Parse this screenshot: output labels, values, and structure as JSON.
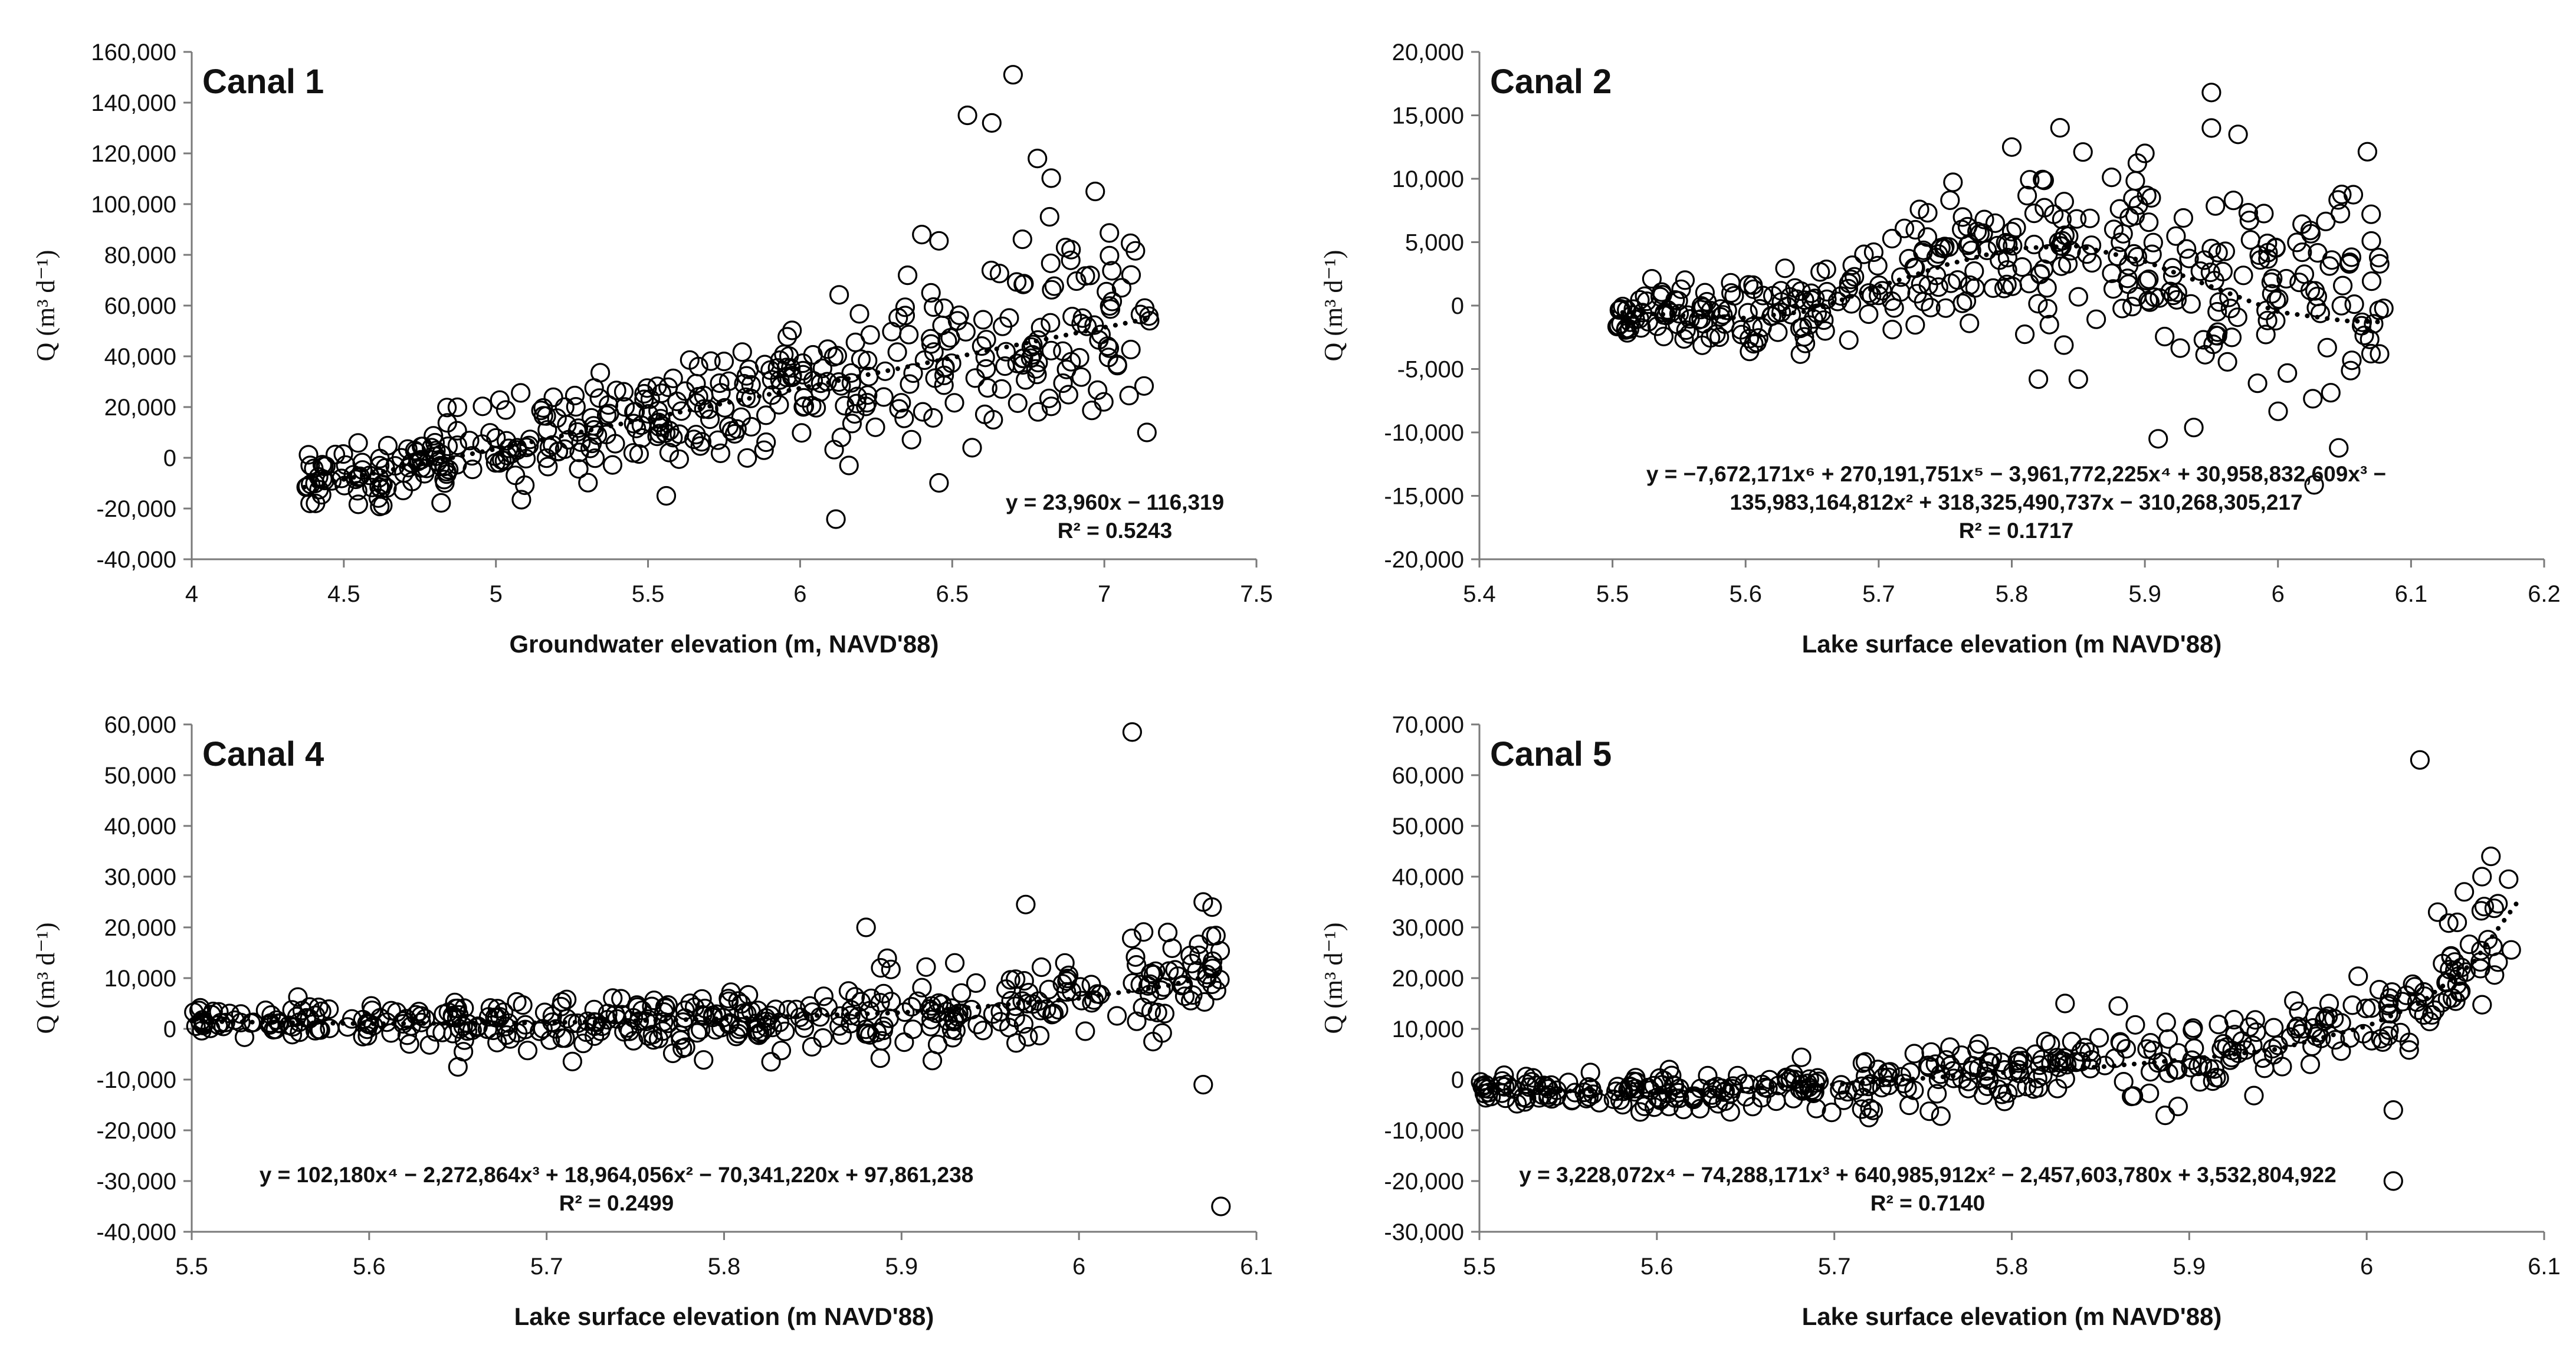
{
  "chart_data": [
    {
      "type": "scatter",
      "title": "Canal 1",
      "xlabel": "Groundwater elevation (m, NAVD'88)",
      "ylabel": "Q (m³ d⁻¹)",
      "xlim": [
        4,
        7.5
      ],
      "ylim": [
        -40000,
        160000
      ],
      "xticks": [
        4,
        4.5,
        5,
        5.5,
        6,
        6.5,
        7,
        7.5
      ],
      "xtick_labels": [
        "4",
        "4.5",
        "5",
        "5.5",
        "6",
        "6.5",
        "7",
        "7.5"
      ],
      "yticks": [
        -40000,
        -20000,
        0,
        20000,
        40000,
        60000,
        80000,
        100000,
        120000,
        140000,
        160000
      ],
      "ytick_labels": [
        "-40,000",
        "-20,000",
        "0",
        "20,000",
        "40,000",
        "60,000",
        "80,000",
        "100,000",
        "120,000",
        "140,000",
        "160,000"
      ],
      "trendline": {
        "kind": "poly",
        "coef": [
          -116319,
          23960
        ],
        "xrange": [
          4.37,
          7.15
        ]
      },
      "equation_lines": [
        "y = 23,960x − 116,319",
        "R² = 0.5243"
      ],
      "equation_pos": "bottom-right",
      "points": {
        "kind": "generated",
        "seed": 11,
        "n": 420,
        "xrange": [
          4.37,
          7.15
        ],
        "noise": [
          5000,
          20000
        ],
        "extra": [
          [
            6.55,
            135000
          ],
          [
            6.63,
            132000
          ],
          [
            6.7,
            151000
          ],
          [
            6.78,
            118000
          ],
          [
            6.82,
            95000
          ],
          [
            6.97,
            105000
          ],
          [
            6.4,
            88000
          ],
          [
            7.14,
            10000
          ],
          [
            5.56,
            -15000
          ],
          [
            5.75,
            38000
          ]
        ]
      }
    },
    {
      "type": "scatter",
      "title": "Canal 2",
      "xlabel": "Lake surface elevation (m NAVD'88)",
      "ylabel": "Q (m³ d⁻¹)",
      "xlim": [
        5.4,
        6.2
      ],
      "ylim": [
        -20000,
        20000
      ],
      "xticks": [
        5.4,
        5.5,
        5.6,
        5.7,
        5.8,
        5.9,
        6.0,
        6.1,
        6.2
      ],
      "xtick_labels": [
        "5.4",
        "5.5",
        "5.6",
        "5.7",
        "5.8",
        "5.9",
        "6",
        "6.1",
        "6.2"
      ],
      "yticks": [
        -20000,
        -15000,
        -10000,
        -5000,
        0,
        5000,
        10000,
        15000,
        20000
      ],
      "ytick_labels": [
        "-20,000",
        "-15,000",
        "-10,000",
        "-5,000",
        "0",
        "5,000",
        "10,000",
        "15,000",
        "20,000"
      ],
      "trendline": {
        "kind": "anchors",
        "x": [
          5.5,
          5.6,
          5.65,
          5.7,
          5.75,
          5.8,
          5.85,
          5.9,
          5.95,
          6.0,
          6.05,
          6.08
        ],
        "y": [
          -500,
          -1000,
          -400,
          1500,
          3200,
          4500,
          4700,
          3500,
          1500,
          -500,
          -1200,
          -1300
        ]
      },
      "equation_lines": [
        "y = −7,672,171x⁶ + 270,191,751x⁵ − 3,961,772,225x⁴ + 30,958,832,609x³ −",
        "135,983,164,812x² + 318,325,490,737x − 310,268,305,217",
        "R² = 0.1717"
      ],
      "equation_pos": "bottom-right",
      "points": {
        "kind": "generated",
        "seed": 23,
        "n": 380,
        "xrange": [
          5.5,
          6.08
        ],
        "noise": [
          800,
          5000
        ],
        "extra": [
          [
            5.8,
            12500
          ],
          [
            5.95,
            16800
          ],
          [
            5.95,
            14000
          ],
          [
            5.9,
            12000
          ],
          [
            5.91,
            -10500
          ],
          [
            5.85,
            -5800
          ],
          [
            5.82,
            -5800
          ],
          [
            5.97,
            13500
          ],
          [
            5.95,
            4500
          ],
          [
            6.07,
            7200
          ]
        ]
      }
    },
    {
      "type": "scatter",
      "title": "Canal 4",
      "xlabel": "Lake surface elevation (m NAVD'88)",
      "ylabel": "Q (m³ d⁻¹)",
      "xlim": [
        5.5,
        6.1
      ],
      "ylim": [
        -40000,
        60000
      ],
      "xticks": [
        5.5,
        5.6,
        5.7,
        5.8,
        5.9,
        6.0,
        6.1
      ],
      "xtick_labels": [
        "5.5",
        "5.6",
        "5.7",
        "5.8",
        "5.9",
        "6",
        "6.1"
      ],
      "yticks": [
        -40000,
        -30000,
        -20000,
        -10000,
        0,
        10000,
        20000,
        30000,
        40000,
        50000,
        60000
      ],
      "ytick_labels": [
        "-40,000",
        "-30,000",
        "-20,000",
        "-10,000",
        "0",
        "10,000",
        "20,000",
        "30,000",
        "40,000",
        "50,000",
        "60,000"
      ],
      "trendline": {
        "kind": "anchors",
        "x": [
          5.5,
          5.6,
          5.7,
          5.8,
          5.9,
          5.95,
          6.0,
          6.05,
          6.08
        ],
        "y": [
          1500,
          1000,
          1200,
          2000,
          3200,
          4500,
          6000,
          8500,
          11000
        ]
      },
      "equation_lines": [
        "y = 102,180x⁴ − 2,272,864x³ + 18,964,056x² − 70,341,220x + 97,861,238",
        "R² = 0.2499"
      ],
      "equation_pos": "bottom-left",
      "points": {
        "kind": "generated",
        "seed": 37,
        "n": 400,
        "xrange": [
          5.5,
          6.08
        ],
        "noise": [
          1500,
          4500
        ],
        "extra": [
          [
            6.03,
            58500
          ],
          [
            5.97,
            24500
          ],
          [
            5.88,
            20000
          ],
          [
            6.07,
            25000
          ],
          [
            6.08,
            -35000
          ],
          [
            6.07,
            -11000
          ],
          [
            5.65,
            -7500
          ],
          [
            6.05,
            19000
          ],
          [
            5.93,
            13000
          ],
          [
            6.075,
            24000
          ]
        ]
      }
    },
    {
      "type": "scatter",
      "title": "Canal 5",
      "xlabel": "Lake surface elevation (m NAVD'88)",
      "ylabel": "Q (m³ d⁻¹)",
      "xlim": [
        5.5,
        6.1
      ],
      "ylim": [
        -30000,
        70000
      ],
      "xticks": [
        5.5,
        5.6,
        5.7,
        5.8,
        5.9,
        6.0,
        6.1
      ],
      "xtick_labels": [
        "5.5",
        "5.6",
        "5.7",
        "5.8",
        "5.9",
        "6",
        "6.1"
      ],
      "yticks": [
        -30000,
        -20000,
        -10000,
        0,
        10000,
        20000,
        30000,
        40000,
        50000,
        60000,
        70000
      ],
      "ytick_labels": [
        "-30,000",
        "-20,000",
        "-10,000",
        "0",
        "10,000",
        "20,000",
        "30,000",
        "40,000",
        "50,000",
        "60,000",
        "70,000"
      ],
      "trendline": {
        "kind": "anchors",
        "x": [
          5.5,
          5.6,
          5.7,
          5.8,
          5.85,
          5.9,
          5.95,
          6.0,
          6.03,
          6.06,
          6.085
        ],
        "y": [
          -2000,
          -2500,
          -1000,
          1500,
          2500,
          4000,
          6000,
          10500,
          15000,
          23000,
          35000
        ]
      },
      "equation_lines": [
        "y = 3,228,072x⁴ − 74,288,171x³ + 640,985,912x² − 2,457,603,780x + 3,532,804,922",
        "R² = 0.7140"
      ],
      "equation_pos": "bottom-left",
      "points": {
        "kind": "generated",
        "seed": 53,
        "n": 400,
        "xrange": [
          5.5,
          6.085
        ],
        "noise": [
          1200,
          5000
        ],
        "extra": [
          [
            6.03,
            63000
          ],
          [
            6.07,
            44000
          ],
          [
            6.065,
            40000
          ],
          [
            6.015,
            -20000
          ],
          [
            6.015,
            -6000
          ],
          [
            5.83,
            15000
          ],
          [
            5.86,
            14500
          ],
          [
            6.04,
            33000
          ],
          [
            6.08,
            39500
          ],
          [
            6.055,
            37000
          ]
        ]
      }
    }
  ]
}
